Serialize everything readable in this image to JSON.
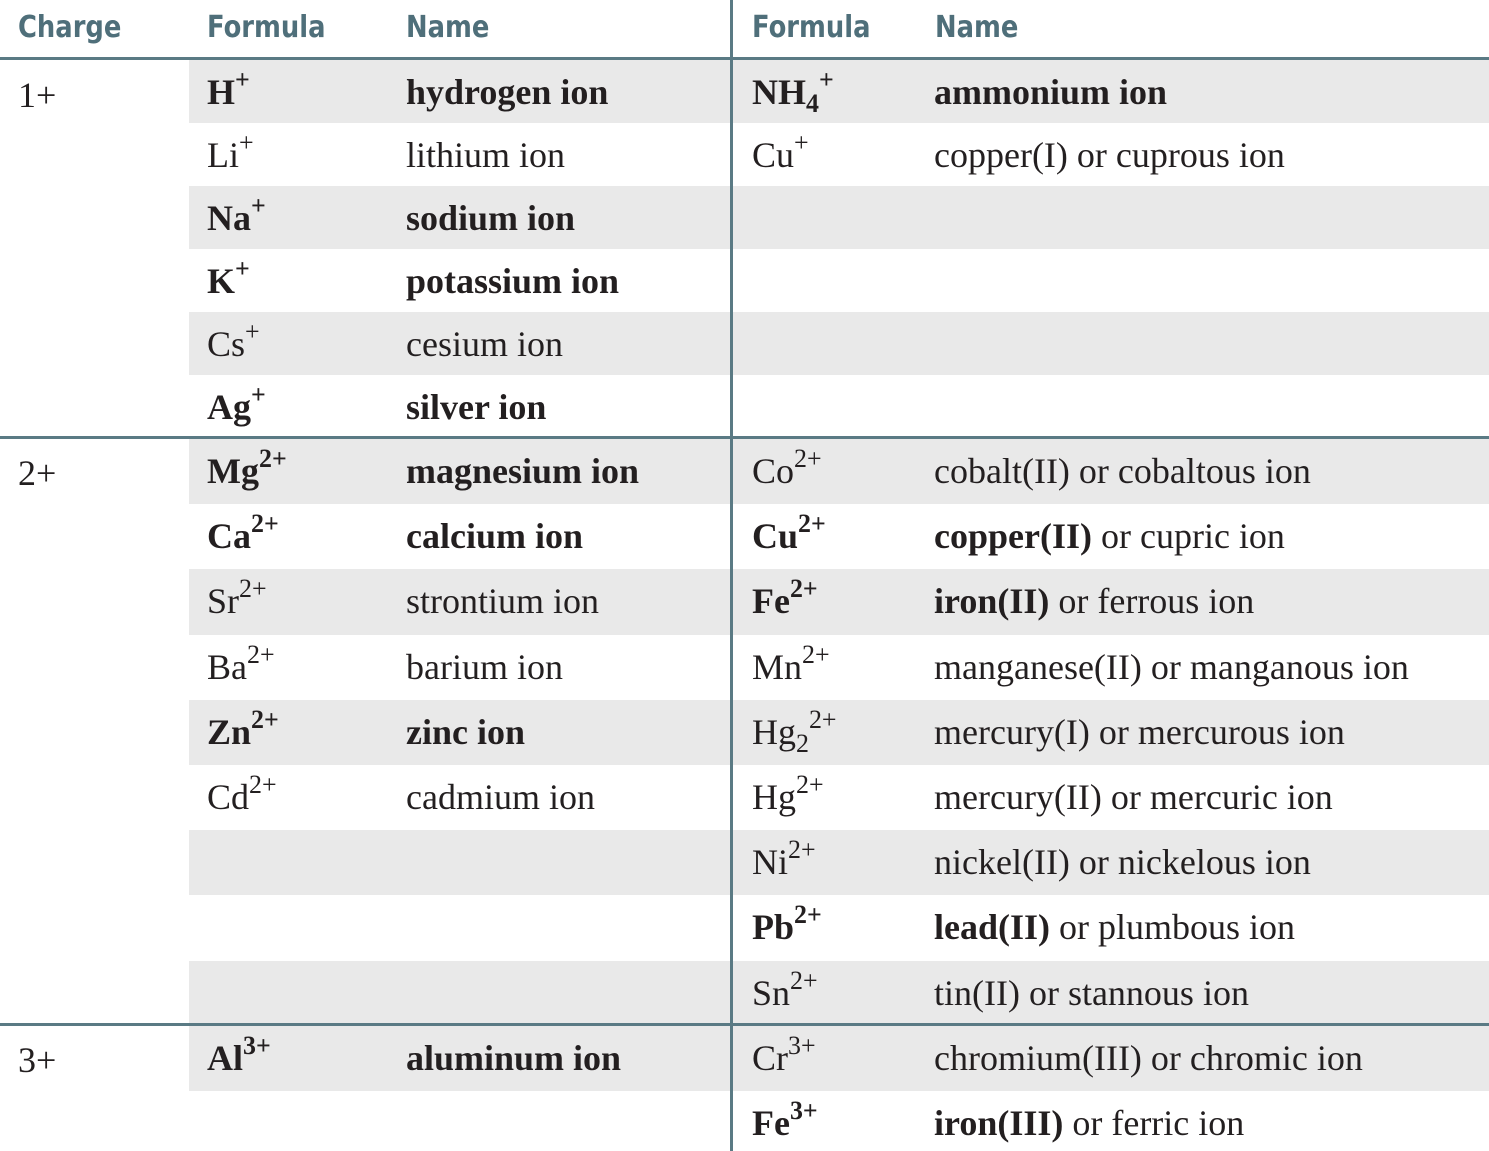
{
  "header": {
    "charge": "Charge",
    "formula_left": "Formula",
    "name_left": "Name",
    "formula_right": "Formula",
    "name_right": "Name"
  },
  "groups": {
    "g1": {
      "charge": "1+",
      "left": [
        {
          "sym": "H",
          "sub": "",
          "sup": "+",
          "name": "hydrogen ion",
          "bold": true
        },
        {
          "sym": "Li",
          "sub": "",
          "sup": "+",
          "name": "lithium ion",
          "bold": false
        },
        {
          "sym": "Na",
          "sub": "",
          "sup": "+",
          "name": "sodium ion",
          "bold": true
        },
        {
          "sym": "K",
          "sub": "",
          "sup": "+",
          "name": "potassium ion",
          "bold": true
        },
        {
          "sym": "Cs",
          "sub": "",
          "sup": "+",
          "name": "cesium ion",
          "bold": false
        },
        {
          "sym": "Ag",
          "sub": "",
          "sup": "+",
          "name": "silver ion",
          "bold": true
        }
      ],
      "right": [
        {
          "sym": "NH",
          "sub": "4",
          "sup": "+",
          "name_bold": "ammonium ion",
          "name_rest": "",
          "bold": true
        },
        {
          "sym": "Cu",
          "sub": "",
          "sup": "+",
          "name_bold": "",
          "name_rest": "copper(I) or cuprous ion",
          "bold": false
        }
      ]
    },
    "g2": {
      "charge": "2+",
      "left": [
        {
          "sym": "Mg",
          "sub": "",
          "sup": "2+",
          "name": "magnesium ion",
          "bold": true
        },
        {
          "sym": "Ca",
          "sub": "",
          "sup": "2+",
          "name": "calcium ion",
          "bold": true
        },
        {
          "sym": "Sr",
          "sub": "",
          "sup": "2+",
          "name": "strontium ion",
          "bold": false
        },
        {
          "sym": "Ba",
          "sub": "",
          "sup": "2+",
          "name": "barium ion",
          "bold": false
        },
        {
          "sym": "Zn",
          "sub": "",
          "sup": "2+",
          "name": "zinc ion",
          "bold": true
        },
        {
          "sym": "Cd",
          "sub": "",
          "sup": "2+",
          "name": "cadmium ion",
          "bold": false
        }
      ],
      "right": [
        {
          "sym": "Co",
          "sub": "",
          "sup": "2+",
          "name_bold": "",
          "name_rest": "cobalt(II) or cobaltous ion",
          "bold": false
        },
        {
          "sym": "Cu",
          "sub": "",
          "sup": "2+",
          "name_bold": "copper(II)",
          "name_rest": " or cupric ion",
          "bold": true
        },
        {
          "sym": "Fe",
          "sub": "",
          "sup": "2+",
          "name_bold": "iron(II)",
          "name_rest": " or ferrous ion",
          "bold": true
        },
        {
          "sym": "Mn",
          "sub": "",
          "sup": "2+",
          "name_bold": "",
          "name_rest": "manganese(II) or manganous ion",
          "bold": false
        },
        {
          "sym": "Hg",
          "sub": "2",
          "sup": "2+",
          "name_bold": "",
          "name_rest": "mercury(I) or mercurous ion",
          "bold": false
        },
        {
          "sym": "Hg",
          "sub": "",
          "sup": "2+",
          "name_bold": "",
          "name_rest": "mercury(II) or mercuric ion",
          "bold": false
        },
        {
          "sym": "Ni",
          "sub": "",
          "sup": "2+",
          "name_bold": "",
          "name_rest": "nickel(II) or nickelous ion",
          "bold": false
        },
        {
          "sym": "Pb",
          "sub": "",
          "sup": "2+",
          "name_bold": "lead(II)",
          "name_rest": " or plumbous ion",
          "bold": true
        },
        {
          "sym": "Sn",
          "sub": "",
          "sup": "2+",
          "name_bold": "",
          "name_rest": "tin(II) or stannous ion",
          "bold": false
        }
      ]
    },
    "g3": {
      "charge": "3+",
      "left": [
        {
          "sym": "Al",
          "sub": "",
          "sup": "3+",
          "name": "aluminum ion",
          "bold": true
        }
      ],
      "right": [
        {
          "sym": "Cr",
          "sub": "",
          "sup": "3+",
          "name_bold": "",
          "name_rest": "chromium(III) or chromic ion",
          "bold": false
        },
        {
          "sym": "Fe",
          "sub": "",
          "sup": "3+",
          "name_bold": "iron(III)",
          "name_rest": " or ferric ion",
          "bold": true
        }
      ]
    }
  }
}
